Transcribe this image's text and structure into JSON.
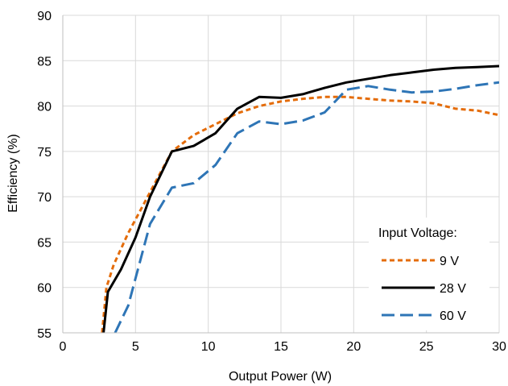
{
  "chart_data": {
    "type": "line",
    "xlabel": "Output Power (W)",
    "ylabel": "Efficiency (%)",
    "xlim": [
      0,
      30
    ],
    "ylim": [
      55,
      90
    ],
    "xticks": [
      0,
      5,
      10,
      15,
      20,
      25,
      30
    ],
    "yticks": [
      55,
      60,
      65,
      70,
      75,
      80,
      85,
      90
    ],
    "grid": true,
    "legend": {
      "title": "Input Voltage:",
      "placement": "lower-right"
    },
    "series": [
      {
        "name": "9 V",
        "color": "#E46C0A",
        "dash": "short-dash",
        "x": [
          2.7,
          3.0,
          3.5,
          4.5,
          5.5,
          6.5,
          7.5,
          9.0,
          10.5,
          12.0,
          13.5,
          15.0,
          16.5,
          18.0,
          19.5,
          21.0,
          22.5,
          24.0,
          25.5,
          27.0,
          28.5,
          30.0
        ],
        "y": [
          55.0,
          60.0,
          62.5,
          66.0,
          69.0,
          72.0,
          75.0,
          76.8,
          78.0,
          79.2,
          80.0,
          80.5,
          80.8,
          81.0,
          81.0,
          80.8,
          80.6,
          80.5,
          80.3,
          79.7,
          79.5,
          79.0
        ]
      },
      {
        "name": "28 V",
        "color": "#000000",
        "dash": "solid",
        "x": [
          2.8,
          3.1,
          4.0,
          5.0,
          6.0,
          7.5,
          9.0,
          10.5,
          12.0,
          13.5,
          15.0,
          16.5,
          18.0,
          19.5,
          21.0,
          22.5,
          24.0,
          25.5,
          27.0,
          28.5,
          30.0
        ],
        "y": [
          55.0,
          59.5,
          62.0,
          65.5,
          70.0,
          75.0,
          75.6,
          77.0,
          79.7,
          81.0,
          80.9,
          81.3,
          82.0,
          82.6,
          83.0,
          83.4,
          83.7,
          84.0,
          84.2,
          84.3,
          84.4
        ]
      },
      {
        "name": "60 V",
        "color": "#2E75B6",
        "dash": "long-dash",
        "x": [
          3.6,
          4.5,
          5.0,
          6.0,
          7.5,
          9.0,
          10.5,
          12.0,
          13.5,
          15.0,
          16.5,
          18.0,
          19.5,
          21.0,
          22.5,
          24.0,
          25.5,
          27.0,
          28.5,
          30.0
        ],
        "y": [
          55.0,
          58.0,
          61.0,
          67.0,
          71.0,
          71.5,
          73.5,
          77.0,
          78.3,
          78.0,
          78.4,
          79.3,
          81.8,
          82.2,
          81.8,
          81.5,
          81.6,
          81.9,
          82.3,
          82.6
        ]
      }
    ]
  }
}
